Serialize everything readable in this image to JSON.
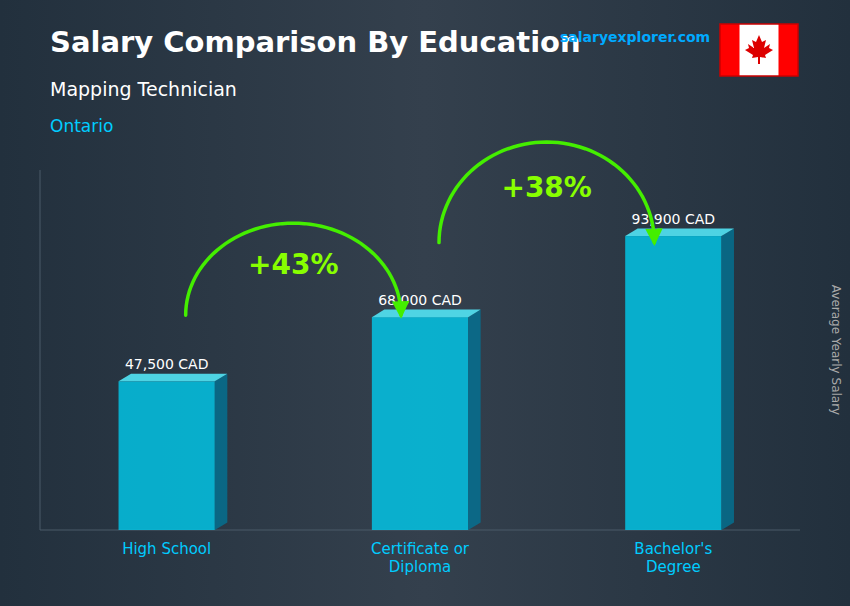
{
  "chart_data": {
    "type": "bar",
    "title": "Salary Comparison By Education",
    "subtitle": "Mapping Technician",
    "location": "Ontario",
    "source": "salaryexplorer.com",
    "y_label": "Average Yearly Salary",
    "categories": [
      "High School",
      "Certificate or\nDiploma",
      "Bachelor's\nDegree"
    ],
    "values": [
      47500,
      68000,
      93900
    ],
    "value_labels": [
      "47,500 CAD",
      "68,000 CAD",
      "93,900 CAD"
    ],
    "data_labels": true,
    "annotations": [
      "+43%",
      "+38%"
    ],
    "color": "#00ccee",
    "ylim": [
      0,
      115000
    ],
    "yticks": [],
    "tick_labels": "x",
    "grid": false
  }
}
